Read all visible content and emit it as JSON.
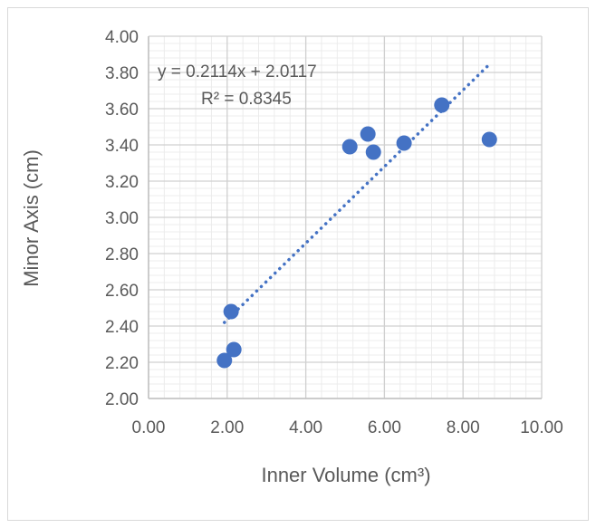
{
  "chart_data": {
    "type": "scatter",
    "title": "",
    "xlabel": "Inner Volume (cm³)",
    "ylabel": "Minor Axis (cm)",
    "xlim": [
      0,
      10
    ],
    "ylim": [
      2.0,
      4.0
    ],
    "x_ticks": [
      "0.00",
      "2.00",
      "4.00",
      "6.00",
      "8.00",
      "10.00"
    ],
    "y_ticks": [
      "2.00",
      "2.20",
      "2.40",
      "2.60",
      "2.80",
      "3.00",
      "3.20",
      "3.40",
      "3.60",
      "3.80",
      "4.00"
    ],
    "grid": true,
    "marker_color": "#4472C4",
    "points": [
      {
        "x": 1.93,
        "y": 2.21
      },
      {
        "x": 2.17,
        "y": 2.27
      },
      {
        "x": 2.1,
        "y": 2.48
      },
      {
        "x": 5.12,
        "y": 3.39
      },
      {
        "x": 5.58,
        "y": 3.46
      },
      {
        "x": 5.72,
        "y": 3.36
      },
      {
        "x": 6.5,
        "y": 3.41
      },
      {
        "x": 7.46,
        "y": 3.62
      },
      {
        "x": 8.67,
        "y": 3.43
      }
    ],
    "trendline": {
      "type": "linear",
      "slope": 0.2114,
      "intercept": 2.0117,
      "x_range": [
        1.93,
        8.67
      ],
      "style": "dotted",
      "color": "#4472C4",
      "equation_label": "y = 0.2114x + 2.0117",
      "r2_label": "R² = 0.8345"
    }
  }
}
